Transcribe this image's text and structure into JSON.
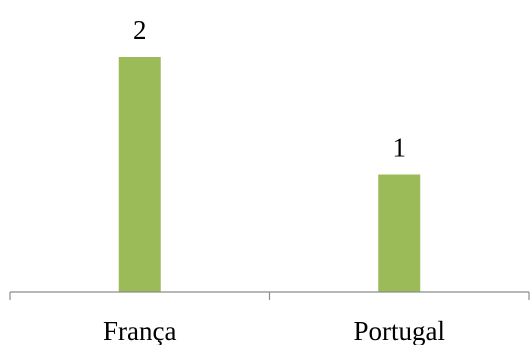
{
  "chart_data": {
    "type": "bar",
    "categories": [
      "França",
      "Portugal"
    ],
    "values": [
      2,
      1
    ],
    "title": "",
    "xlabel": "",
    "ylabel": "",
    "ylim": [
      0,
      2.5
    ],
    "grid": false,
    "legend": "none",
    "show_data_labels": true,
    "colors": {
      "bar": "#9bbb59",
      "axis": "#8c8c8c",
      "text": "#000000"
    }
  }
}
